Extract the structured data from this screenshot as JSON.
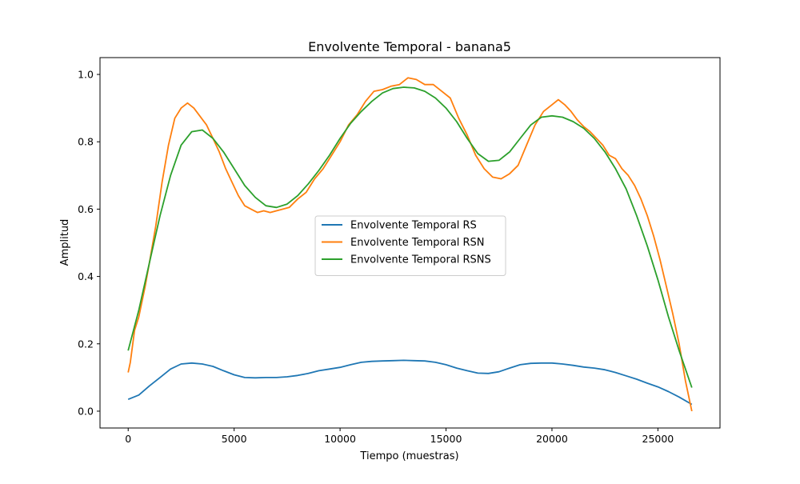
{
  "chart_data": {
    "type": "line",
    "title": "Envolvente Temporal - banana5",
    "xlabel": "Tiempo (muestras)",
    "ylabel": "Amplitud",
    "xlim": [
      -1330,
      27930
    ],
    "ylim": [
      -0.05,
      1.05
    ],
    "xticks": [
      0,
      5000,
      10000,
      15000,
      20000,
      25000
    ],
    "yticks": [
      0.0,
      0.2,
      0.4,
      0.6,
      0.8,
      1.0
    ],
    "grid": false,
    "legend_position": "center",
    "series": [
      {
        "name": "Envolvente Temporal RS",
        "color": "#1f77b4",
        "x": [
          0,
          500,
          1000,
          1500,
          2000,
          2500,
          3000,
          3500,
          4000,
          4500,
          5000,
          5500,
          6000,
          6500,
          7000,
          7500,
          8000,
          8500,
          9000,
          9500,
          10000,
          10500,
          11000,
          11500,
          12000,
          12500,
          13000,
          13500,
          14000,
          14500,
          15000,
          15500,
          16000,
          16500,
          17000,
          17500,
          18000,
          18500,
          19000,
          19500,
          20000,
          20500,
          21000,
          21500,
          22000,
          22500,
          23000,
          23500,
          24000,
          24500,
          25000,
          25500,
          26000,
          26600
        ],
        "y": [
          0.035,
          0.048,
          0.075,
          0.1,
          0.125,
          0.14,
          0.143,
          0.14,
          0.133,
          0.12,
          0.108,
          0.1,
          0.099,
          0.1,
          0.1,
          0.102,
          0.106,
          0.112,
          0.12,
          0.125,
          0.13,
          0.138,
          0.145,
          0.148,
          0.149,
          0.15,
          0.151,
          0.15,
          0.149,
          0.145,
          0.138,
          0.128,
          0.12,
          0.113,
          0.112,
          0.117,
          0.128,
          0.138,
          0.142,
          0.143,
          0.143,
          0.14,
          0.136,
          0.131,
          0.128,
          0.123,
          0.115,
          0.105,
          0.095,
          0.083,
          0.072,
          0.058,
          0.042,
          0.02
        ]
      },
      {
        "name": "Envolvente Temporal RSN",
        "color": "#ff7f0e",
        "x": [
          0,
          100,
          300,
          500,
          800,
          1000,
          1300,
          1600,
          1900,
          2200,
          2500,
          2800,
          3100,
          3400,
          3700,
          4000,
          4300,
          4600,
          4900,
          5200,
          5500,
          5800,
          6100,
          6400,
          6700,
          7000,
          7300,
          7600,
          8000,
          8400,
          8800,
          9200,
          9600,
          10000,
          10400,
          10800,
          11200,
          11600,
          12000,
          12400,
          12800,
          13200,
          13600,
          14000,
          14400,
          14800,
          15200,
          15600,
          16000,
          16400,
          16800,
          17200,
          17600,
          18000,
          18400,
          18800,
          19200,
          19600,
          20000,
          20300,
          20600,
          20900,
          21200,
          21500,
          21800,
          22100,
          22400,
          22700,
          23000,
          23300,
          23600,
          23900,
          24200,
          24500,
          24800,
          25100,
          25400,
          25700,
          26000,
          26300,
          26600
        ],
        "y": [
          0.115,
          0.145,
          0.24,
          0.28,
          0.37,
          0.44,
          0.55,
          0.68,
          0.79,
          0.87,
          0.9,
          0.915,
          0.9,
          0.875,
          0.85,
          0.81,
          0.77,
          0.72,
          0.68,
          0.64,
          0.61,
          0.6,
          0.59,
          0.595,
          0.59,
          0.595,
          0.6,
          0.605,
          0.63,
          0.65,
          0.69,
          0.72,
          0.76,
          0.8,
          0.85,
          0.88,
          0.92,
          0.95,
          0.955,
          0.965,
          0.97,
          0.99,
          0.985,
          0.97,
          0.97,
          0.95,
          0.93,
          0.87,
          0.82,
          0.76,
          0.72,
          0.695,
          0.69,
          0.705,
          0.73,
          0.79,
          0.85,
          0.89,
          0.91,
          0.925,
          0.91,
          0.89,
          0.865,
          0.845,
          0.83,
          0.81,
          0.79,
          0.76,
          0.75,
          0.72,
          0.7,
          0.67,
          0.63,
          0.58,
          0.52,
          0.45,
          0.37,
          0.29,
          0.2,
          0.09,
          0.0
        ]
      },
      {
        "name": "Envolvente Temporal RSNS",
        "color": "#2ca02c",
        "x": [
          0,
          500,
          1000,
          1500,
          2000,
          2500,
          3000,
          3500,
          4000,
          4500,
          5000,
          5500,
          6000,
          6500,
          7000,
          7500,
          8000,
          8500,
          9000,
          9500,
          10000,
          10500,
          11000,
          11500,
          12000,
          12500,
          13000,
          13500,
          14000,
          14500,
          15000,
          15500,
          16000,
          16500,
          17000,
          17500,
          18000,
          18500,
          19000,
          19500,
          20000,
          20500,
          21000,
          21500,
          22000,
          22500,
          23000,
          23500,
          24000,
          24500,
          25000,
          25500,
          26000,
          26600
        ],
        "y": [
          0.18,
          0.3,
          0.44,
          0.58,
          0.7,
          0.79,
          0.83,
          0.835,
          0.81,
          0.77,
          0.72,
          0.67,
          0.635,
          0.61,
          0.605,
          0.615,
          0.64,
          0.675,
          0.715,
          0.76,
          0.81,
          0.855,
          0.89,
          0.92,
          0.945,
          0.958,
          0.962,
          0.96,
          0.95,
          0.93,
          0.9,
          0.86,
          0.81,
          0.765,
          0.742,
          0.745,
          0.77,
          0.81,
          0.85,
          0.873,
          0.877,
          0.873,
          0.86,
          0.84,
          0.81,
          0.77,
          0.72,
          0.66,
          0.58,
          0.49,
          0.39,
          0.28,
          0.18,
          0.07
        ]
      }
    ]
  }
}
